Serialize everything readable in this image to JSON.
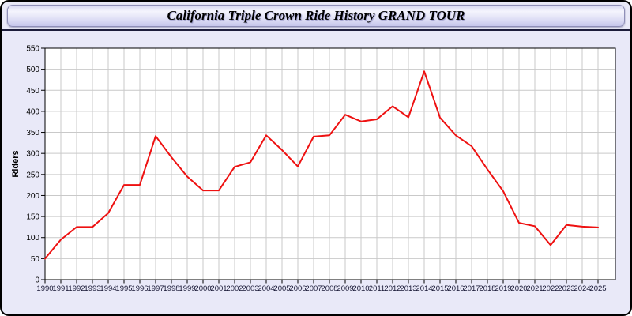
{
  "header": {
    "title": "California Triple Crown Ride History GRAND TOUR"
  },
  "chart_data": {
    "type": "line",
    "title": "California Triple Crown Ride History GRAND TOUR",
    "xlabel": "",
    "ylabel": "Riders",
    "ylim": [
      0,
      550
    ],
    "ytick_step": 50,
    "grid": true,
    "legend_position": "none",
    "categories": [
      "1990",
      "1991",
      "1992",
      "1993",
      "1994",
      "1995",
      "1996",
      "1997",
      "1998",
      "1999",
      "2000",
      "2001",
      "2002",
      "2003",
      "2004",
      "2005",
      "2006",
      "2007",
      "2008",
      "2009",
      "2010",
      "2011",
      "2012",
      "2013",
      "2014",
      "2015",
      "2016",
      "2017",
      "2018",
      "2019",
      "2020",
      "2021",
      "2022",
      "2023",
      "2024",
      "2025"
    ],
    "series": [
      {
        "name": "Riders",
        "values": [
          50,
          95,
          125,
          125,
          158,
          225,
          225,
          341,
          291,
          245,
          212,
          212,
          268,
          279,
          343,
          308,
          269,
          340,
          343,
          392,
          376,
          381,
          412,
          386,
          495,
          385,
          343,
          317,
          262,
          210,
          135,
          127,
          82,
          130,
          126,
          124
        ]
      }
    ],
    "colors": {
      "line": "#ee1111",
      "plot_background": "#ffffff",
      "page_background": "#e9e9f8",
      "grid": "#c9c9c9",
      "plot_border": "#000000",
      "x_label_text": "#141432",
      "y_label_text": "#000000"
    }
  }
}
